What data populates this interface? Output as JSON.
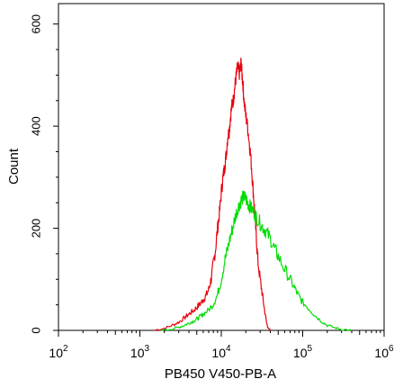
{
  "chart_data": {
    "type": "line",
    "chart_kind": "flow cytometry histogram overlay",
    "xlabel": "PB450 V450-PB-A",
    "ylabel": "Count",
    "x_scale": "log",
    "xlim": [
      100,
      1000000
    ],
    "ylim": [
      0,
      640
    ],
    "x_ticks": [
      {
        "value": 100,
        "base": "10",
        "exp": "2"
      },
      {
        "value": 1000,
        "base": "10",
        "exp": "3"
      },
      {
        "value": 10000,
        "base": "10",
        "exp": "4"
      },
      {
        "value": 100000,
        "base": "10",
        "exp": "5"
      },
      {
        "value": 1000000,
        "base": "10",
        "exp": "6"
      }
    ],
    "y_ticks": [
      {
        "value": 0,
        "label": "0"
      },
      {
        "value": 200,
        "label": "200"
      },
      {
        "value": 400,
        "label": "400"
      },
      {
        "value": 600,
        "label": "600"
      }
    ],
    "grid": false,
    "legend": "none",
    "series": [
      {
        "color": "#e8000b",
        "points": [
          [
            1500,
            0
          ],
          [
            2000,
            4
          ],
          [
            2500,
            10
          ],
          [
            3000,
            16
          ],
          [
            3500,
            24
          ],
          [
            4000,
            32
          ],
          [
            4500,
            38
          ],
          [
            5000,
            45
          ],
          [
            5500,
            52
          ],
          [
            6000,
            60
          ],
          [
            6500,
            68
          ],
          [
            7000,
            80
          ],
          [
            7500,
            100
          ],
          [
            8000,
            130
          ],
          [
            8500,
            160
          ],
          [
            9000,
            200
          ],
          [
            9500,
            230
          ],
          [
            10000,
            270
          ],
          [
            10500,
            300
          ],
          [
            11000,
            320
          ],
          [
            11500,
            345
          ],
          [
            12000,
            380
          ],
          [
            12500,
            390
          ],
          [
            13000,
            420
          ],
          [
            13500,
            440
          ],
          [
            14000,
            450
          ],
          [
            14500,
            470
          ],
          [
            15000,
            490
          ],
          [
            15500,
            505
          ],
          [
            16000,
            520
          ],
          [
            16500,
            500
          ],
          [
            17000,
            510
          ],
          [
            17500,
            525
          ],
          [
            18000,
            500
          ],
          [
            18500,
            480
          ],
          [
            19000,
            450
          ],
          [
            20000,
            420
          ],
          [
            21000,
            400
          ],
          [
            22000,
            370
          ],
          [
            23000,
            340
          ],
          [
            24000,
            300
          ],
          [
            25000,
            260
          ],
          [
            26000,
            220
          ],
          [
            27000,
            180
          ],
          [
            28000,
            140
          ],
          [
            30000,
            100
          ],
          [
            32000,
            70
          ],
          [
            34000,
            40
          ],
          [
            36000,
            15
          ],
          [
            38000,
            3
          ],
          [
            40000,
            0
          ]
        ]
      },
      {
        "color": "#00dd00",
        "points": [
          [
            1800,
            0
          ],
          [
            2500,
            3
          ],
          [
            3000,
            6
          ],
          [
            3500,
            10
          ],
          [
            4000,
            14
          ],
          [
            4500,
            18
          ],
          [
            5000,
            22
          ],
          [
            5500,
            27
          ],
          [
            6000,
            32
          ],
          [
            7000,
            40
          ],
          [
            8000,
            52
          ],
          [
            9000,
            70
          ],
          [
            10000,
            100
          ],
          [
            11000,
            135
          ],
          [
            12000,
            160
          ],
          [
            13000,
            185
          ],
          [
            14000,
            205
          ],
          [
            15000,
            225
          ],
          [
            16000,
            240
          ],
          [
            17000,
            250
          ],
          [
            18000,
            258
          ],
          [
            19000,
            262
          ],
          [
            20000,
            258
          ],
          [
            21000,
            250
          ],
          [
            22000,
            245
          ],
          [
            23000,
            240
          ],
          [
            25000,
            232
          ],
          [
            27000,
            222
          ],
          [
            30000,
            210
          ],
          [
            33000,
            200
          ],
          [
            36000,
            192
          ],
          [
            40000,
            180
          ],
          [
            45000,
            160
          ],
          [
            50000,
            145
          ],
          [
            60000,
            120
          ],
          [
            70000,
            100
          ],
          [
            80000,
            82
          ],
          [
            90000,
            66
          ],
          [
            100000,
            55
          ],
          [
            120000,
            42
          ],
          [
            140000,
            30
          ],
          [
            170000,
            18
          ],
          [
            200000,
            10
          ],
          [
            250000,
            5
          ],
          [
            300000,
            2
          ],
          [
            400000,
            0
          ]
        ]
      }
    ]
  }
}
